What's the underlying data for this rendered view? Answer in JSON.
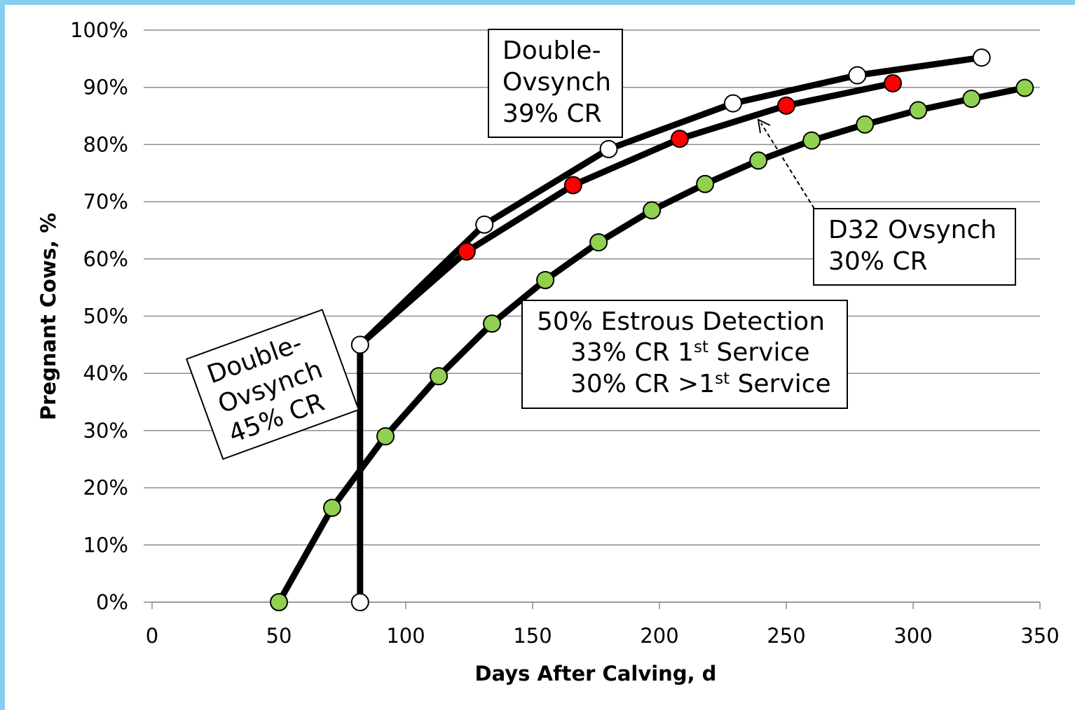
{
  "chart_data": {
    "type": "line",
    "title": "",
    "xlabel": "Days After Calving, d",
    "ylabel": "Pregnant Cows, %",
    "xlim": [
      0,
      350
    ],
    "ylim": [
      0,
      100
    ],
    "x_ticks": [
      "0",
      "50",
      "100",
      "150",
      "200",
      "250",
      "300",
      "350"
    ],
    "x_tick_values": [
      0,
      50,
      100,
      150,
      200,
      250,
      300,
      350
    ],
    "y_ticks": [
      "0%",
      "10%",
      "20%",
      "30%",
      "40%",
      "50%",
      "60%",
      "70%",
      "80%",
      "90%",
      "100%"
    ],
    "y_tick_values": [
      0,
      10,
      20,
      30,
      40,
      50,
      60,
      70,
      80,
      90,
      100
    ],
    "grid": "horizontal",
    "series": [
      {
        "key": "estrous",
        "color": "#92d050",
        "points": [
          [
            50,
            0
          ],
          [
            71,
            16.5
          ],
          [
            92,
            29
          ],
          [
            113,
            39.5
          ],
          [
            134,
            48.7
          ],
          [
            155,
            56.3
          ],
          [
            176,
            62.9
          ],
          [
            197,
            68.5
          ],
          [
            218,
            73.1
          ],
          [
            239,
            77.2
          ],
          [
            260,
            80.7
          ],
          [
            281,
            83.5
          ],
          [
            302,
            86
          ],
          [
            323,
            88
          ],
          [
            344,
            89.9
          ]
        ]
      },
      {
        "key": "double_ovsynch_39",
        "color": "#ffffff",
        "points": [
          [
            82,
            0
          ],
          [
            82,
            45
          ],
          [
            131,
            66
          ],
          [
            180,
            79.2
          ],
          [
            229,
            87.2
          ],
          [
            278,
            92.1
          ],
          [
            327,
            95.2
          ]
        ]
      },
      {
        "key": "d32_ovsynch",
        "color": "#ff0000",
        "points": [
          [
            82,
            45
          ],
          [
            124,
            61.3
          ],
          [
            166,
            72.9
          ],
          [
            208,
            81
          ],
          [
            250,
            86.8
          ],
          [
            292,
            90.7
          ]
        ]
      }
    ],
    "annotations": {
      "do39": {
        "lines": [
          "Double-",
          "Ovsynch",
          "39% CR"
        ]
      },
      "d32": {
        "lines": [
          "D32 Ovsynch",
          "30% CR"
        ]
      },
      "estrous": {
        "line1": "50% Estrous Detection",
        "line2_a": "33% CR 1",
        "line2_sup": "st",
        "line2_b": " Service",
        "line3_a": "30% CR >1",
        "line3_sup": "st",
        "line3_b": " Service"
      },
      "do45": {
        "lines": [
          "Double-",
          "Ovsynch",
          "45% CR"
        ]
      }
    }
  }
}
